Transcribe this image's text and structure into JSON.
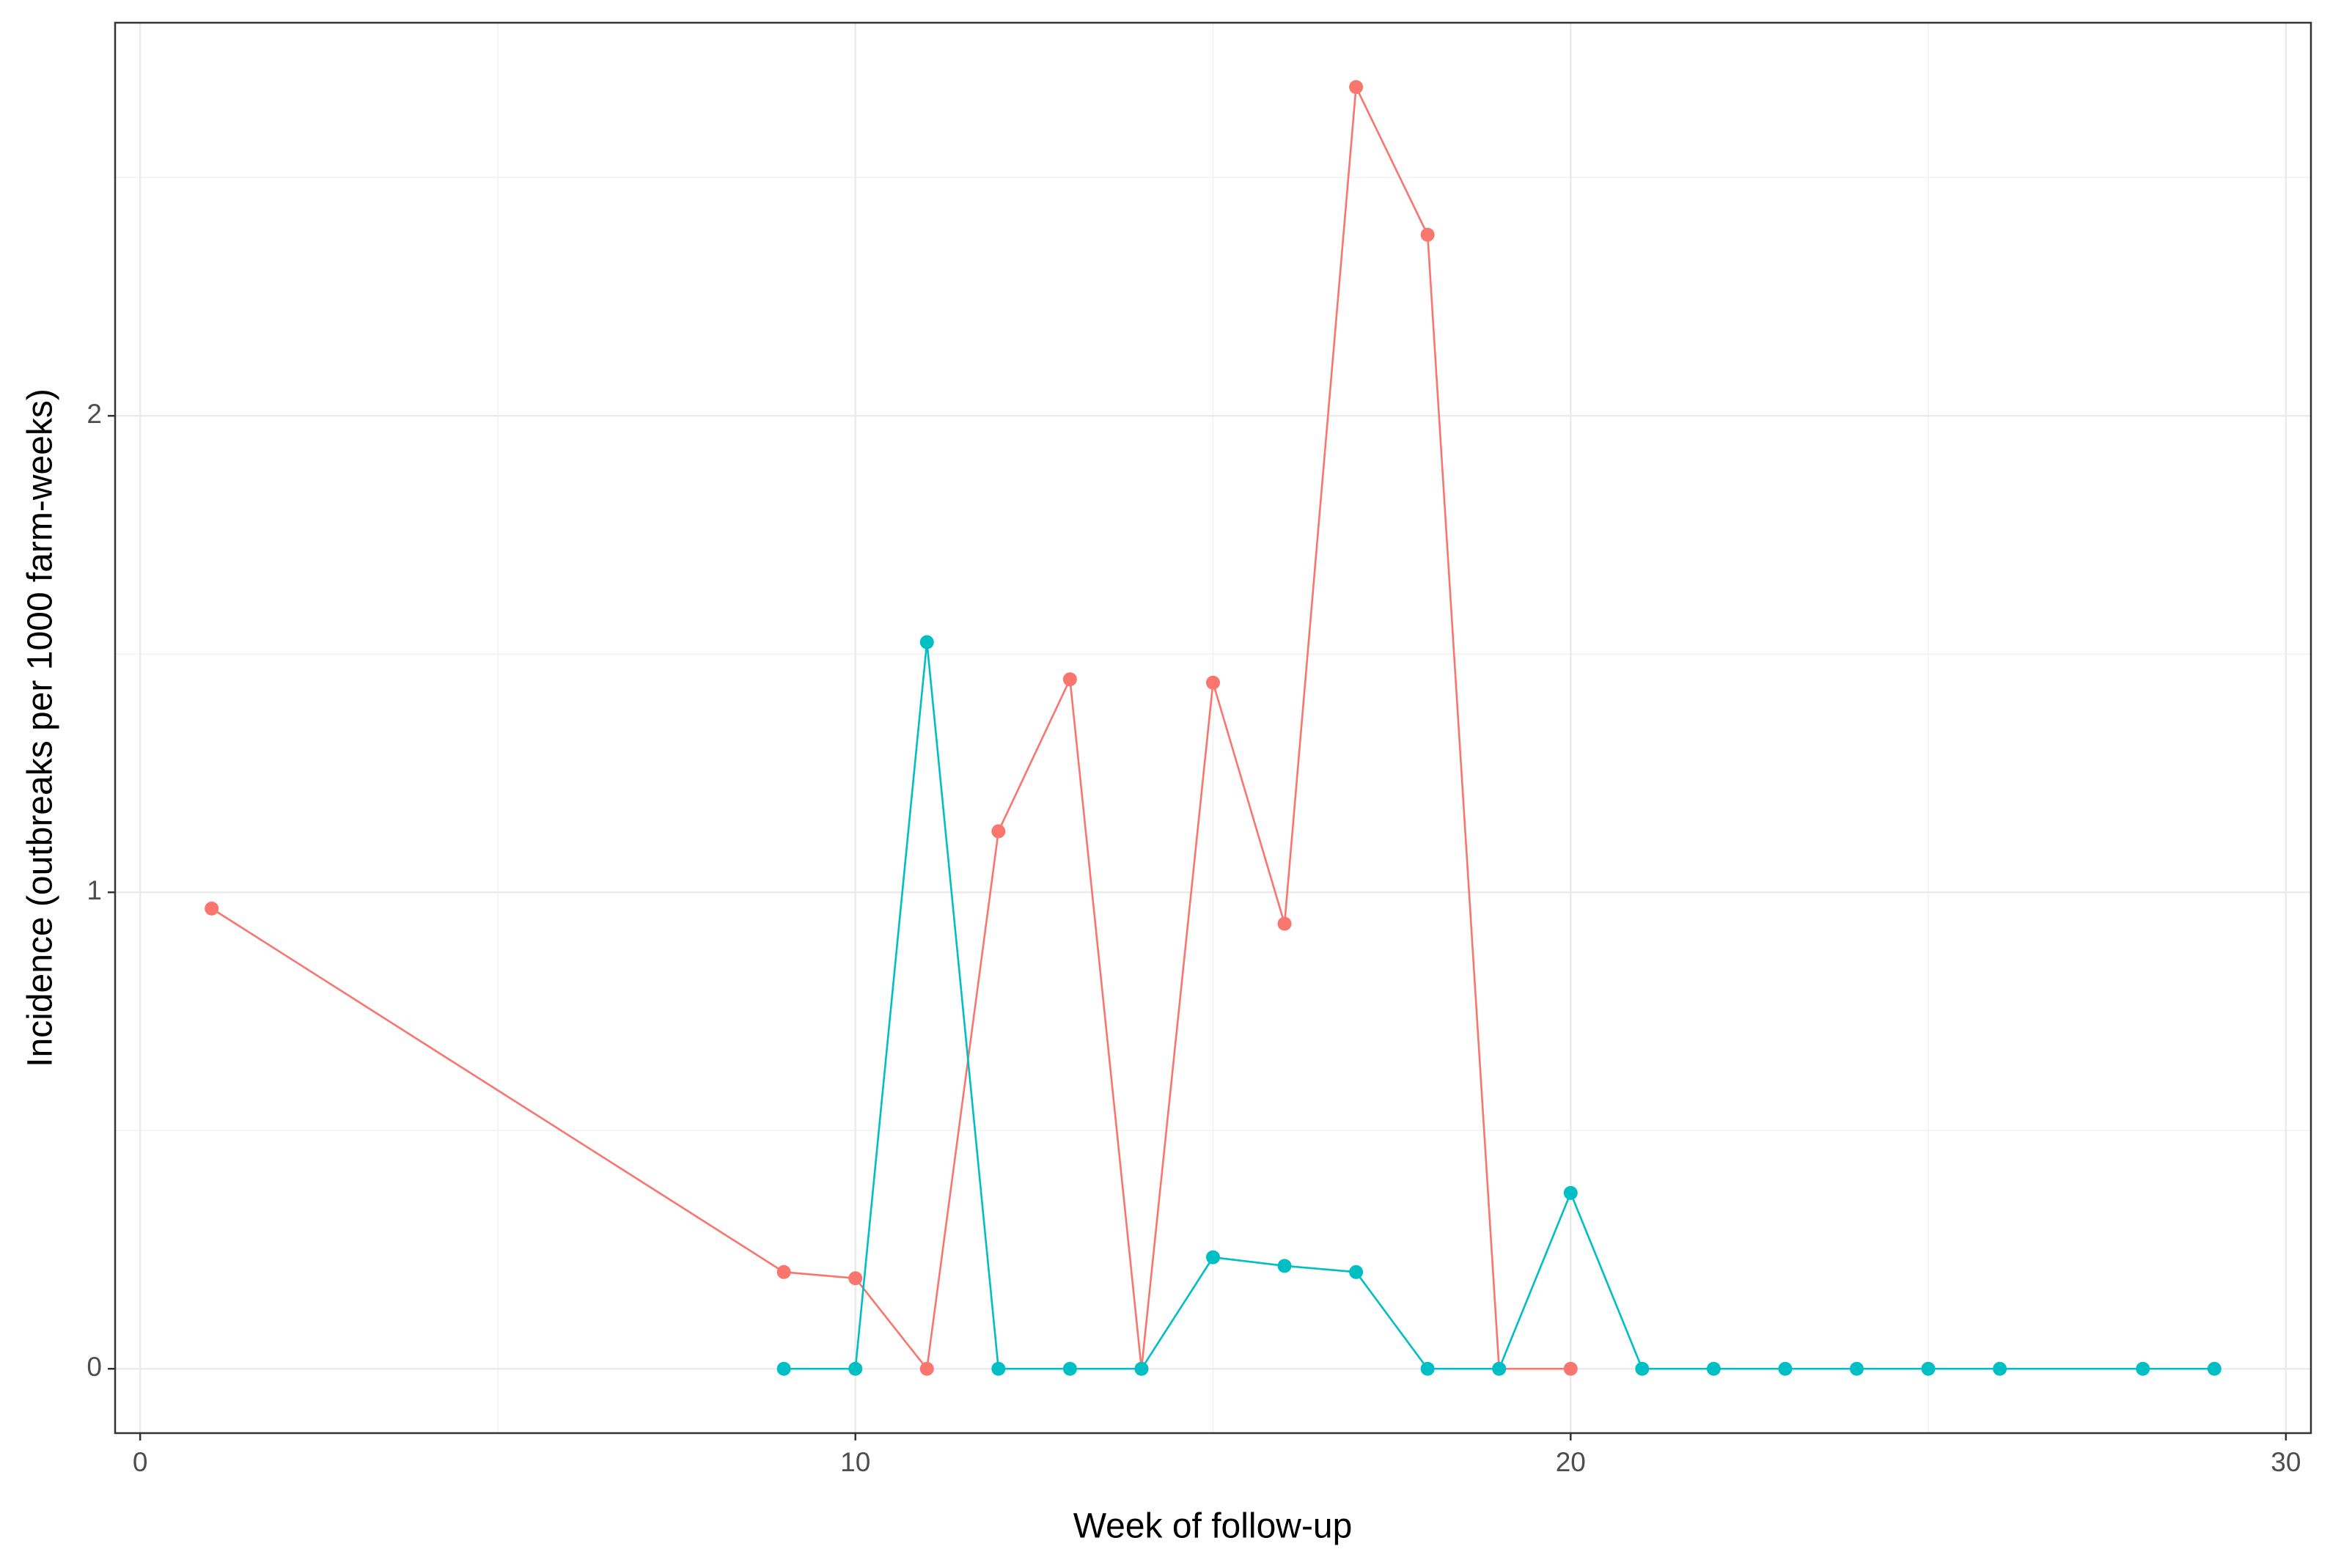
{
  "chart_data": {
    "type": "line",
    "x_label": "Week of follow-up",
    "y_label": "Incidence (outbreaks per 1000 farm-weeks)",
    "xlim": [
      -0.35,
      30.35
    ],
    "xticks": [
      0,
      10,
      20,
      30
    ],
    "ylim": [
      -0.135,
      2.825
    ],
    "yticks": [
      0,
      1,
      2
    ],
    "grid": true,
    "minor_grid": true,
    "markers": true,
    "series": [
      {
        "color": "#F8766D",
        "x": [
          1,
          9,
          10,
          11,
          12,
          13,
          14,
          15,
          16,
          17,
          18,
          19,
          20
        ],
        "values": [
          0.966,
          0.203,
          0.19,
          0,
          1.128,
          1.447,
          0,
          1.44,
          0.934,
          2.69,
          2.38,
          0,
          0
        ]
      },
      {
        "color": "#00BFC4",
        "x": [
          9,
          10,
          11,
          12,
          13,
          14,
          15,
          16,
          17,
          18,
          19,
          20,
          21,
          22,
          23,
          24,
          25,
          26,
          28,
          29
        ],
        "values": [
          0,
          0,
          1.525,
          0,
          0,
          0,
          0.234,
          0.216,
          0.203,
          0,
          0,
          0.369,
          0,
          0,
          0,
          0,
          0,
          0,
          0,
          0
        ]
      }
    ]
  }
}
